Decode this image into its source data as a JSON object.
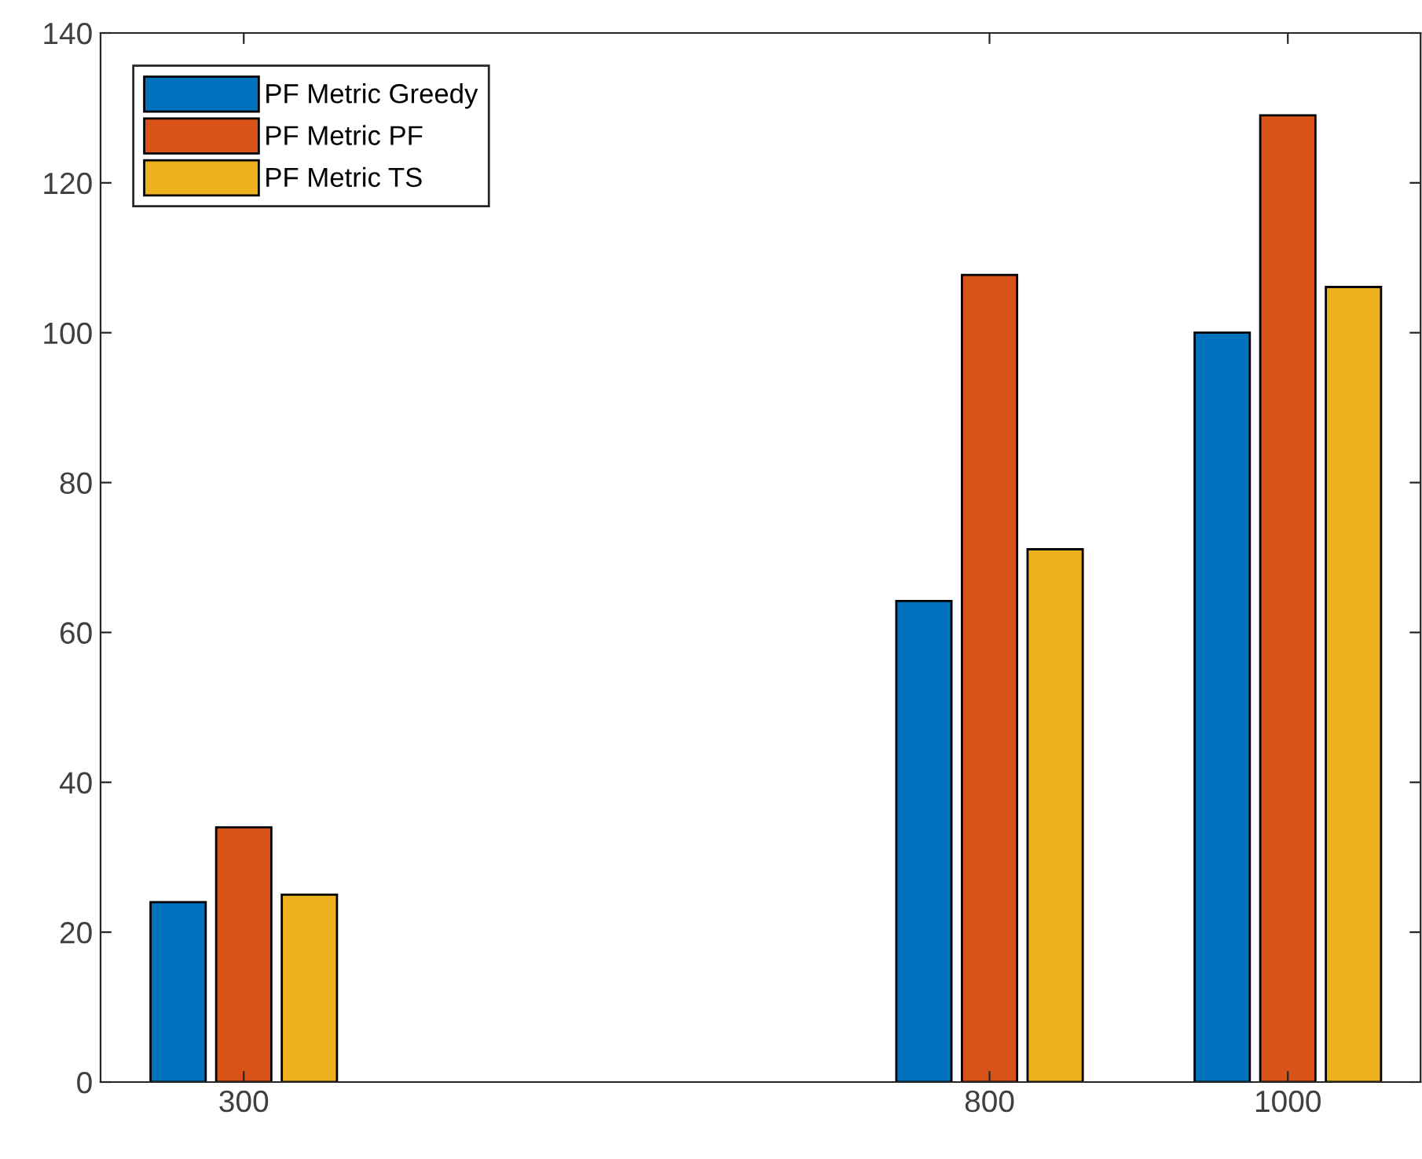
{
  "chart_data": {
    "type": "bar",
    "x": [
      300,
      800,
      1000
    ],
    "series": [
      {
        "name": "PF Metric Greedy",
        "color": "#0072bd",
        "values": [
          24,
          64.2,
          100
        ]
      },
      {
        "name": "PF Metric PF",
        "color": "#d95319",
        "values": [
          34,
          107.7,
          129
        ]
      },
      {
        "name": "PF Metric TS",
        "color": "#edb120",
        "values": [
          25,
          71.1,
          106.1
        ]
      }
    ],
    "xlim": [
      204,
      1089
    ],
    "xticks": [
      300,
      800,
      1000
    ],
    "ylim": [
      0,
      140
    ],
    "yticks": [
      0,
      20,
      40,
      60,
      80,
      100,
      120,
      140
    ],
    "grid": false,
    "legend": "top left"
  }
}
